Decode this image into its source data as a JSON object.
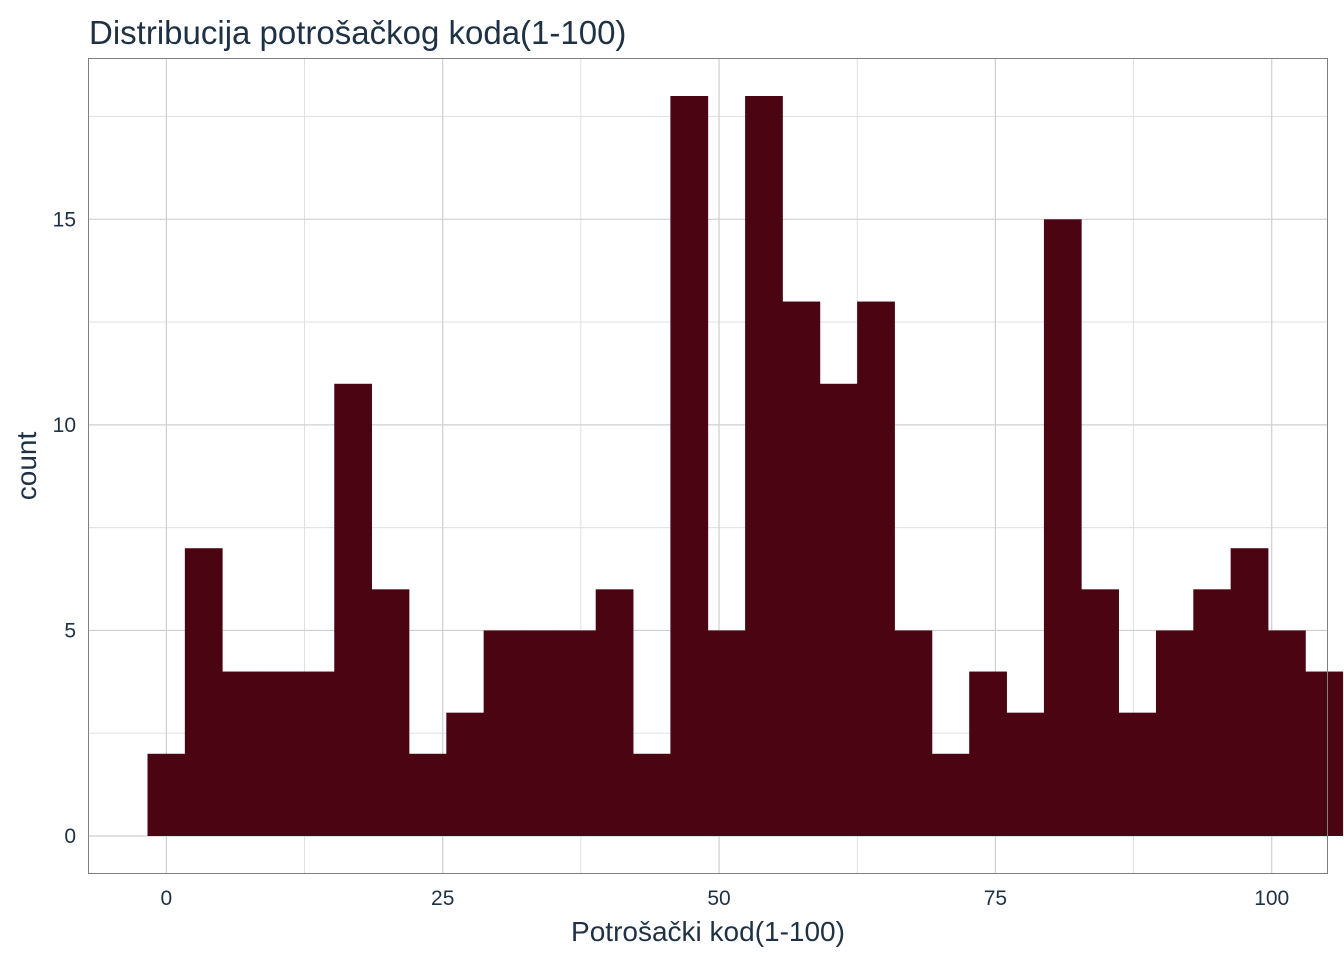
{
  "chart_data": {
    "type": "bar",
    "title": "Distribucija potrošačkog koda(1-100)",
    "xlabel": "Potrošački kod(1-100)",
    "ylabel": "count",
    "bar_color": "#4a0412",
    "xlim": [
      -7,
      105
    ],
    "ylim": [
      -0.9,
      18.9
    ],
    "x_ticks": [
      0,
      25,
      50,
      75,
      100
    ],
    "y_ticks": [
      0,
      5,
      10,
      15
    ],
    "x_minor": [
      12.5,
      37.5,
      62.5,
      87.5
    ],
    "y_minor": [
      2.5,
      7.5,
      12.5,
      17.5
    ],
    "grid": true,
    "bins": {
      "start": -1.707,
      "width": 3.379,
      "counts": [
        2,
        7,
        4,
        4,
        4,
        11,
        6,
        2,
        3,
        5,
        5,
        5,
        6,
        2,
        18,
        5,
        18,
        13,
        11,
        13,
        5,
        2,
        4,
        3,
        15,
        6,
        3,
        5,
        6,
        7,
        5,
        4
      ]
    }
  }
}
